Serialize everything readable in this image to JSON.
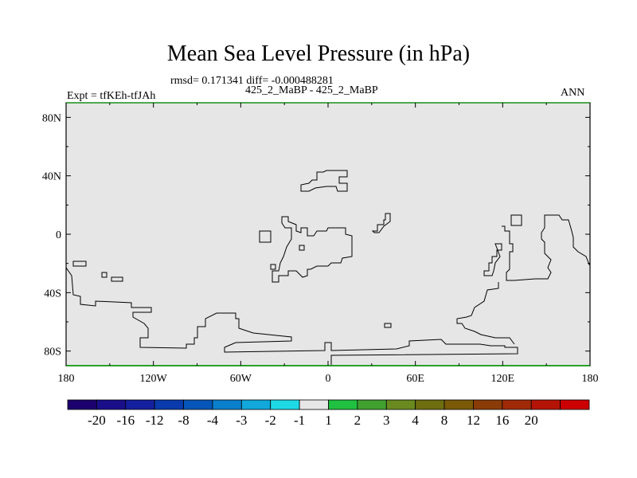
{
  "chart_data": {
    "type": "contour-map",
    "title": "Mean Sea Level Pressure (in hPa)",
    "stats": "rmsd= 0.171341 diff= -0.000488281",
    "subtitle": "425_2_MaBP - 425_2_MaBP",
    "left_label": "Expt = tfKEh-tfJAh",
    "right_label": "ANN",
    "x_ticks": [
      {
        "lon": -180,
        "label": "180"
      },
      {
        "lon": -120,
        "label": "120W"
      },
      {
        "lon": -60,
        "label": "60W"
      },
      {
        "lon": 0,
        "label": "0"
      },
      {
        "lon": 60,
        "label": "60E"
      },
      {
        "lon": 120,
        "label": "120E"
      },
      {
        "lon": 180,
        "label": "180"
      }
    ],
    "y_ticks": [
      {
        "lat": 80,
        "label": "80N"
      },
      {
        "lat": 40,
        "label": "40N"
      },
      {
        "lat": 0,
        "label": "0"
      },
      {
        "lat": -40,
        "label": "40S"
      },
      {
        "lat": -80,
        "label": "80S"
      }
    ],
    "xlim": [
      -180,
      180
    ],
    "ylim": [
      -90,
      90
    ],
    "field_color": "#e6e6e6",
    "colorbar": {
      "colors": [
        "#1c006e",
        "#1a0f8a",
        "#14209e",
        "#0a3bac",
        "#0556b8",
        "#0a7fcc",
        "#12a8dc",
        "#1fd8e6",
        "#e6e6e6",
        "#20c040",
        "#40a030",
        "#6a8a20",
        "#6e6e10",
        "#7a5a08",
        "#8a3c08",
        "#a02a08",
        "#b41406",
        "#cc0000"
      ],
      "labels": [
        "-20",
        "-16",
        "-12",
        "-8",
        "-4",
        "-3",
        "-2",
        "-1",
        "1",
        "2",
        "3",
        "4",
        "8",
        "12",
        "16",
        "20"
      ]
    }
  }
}
